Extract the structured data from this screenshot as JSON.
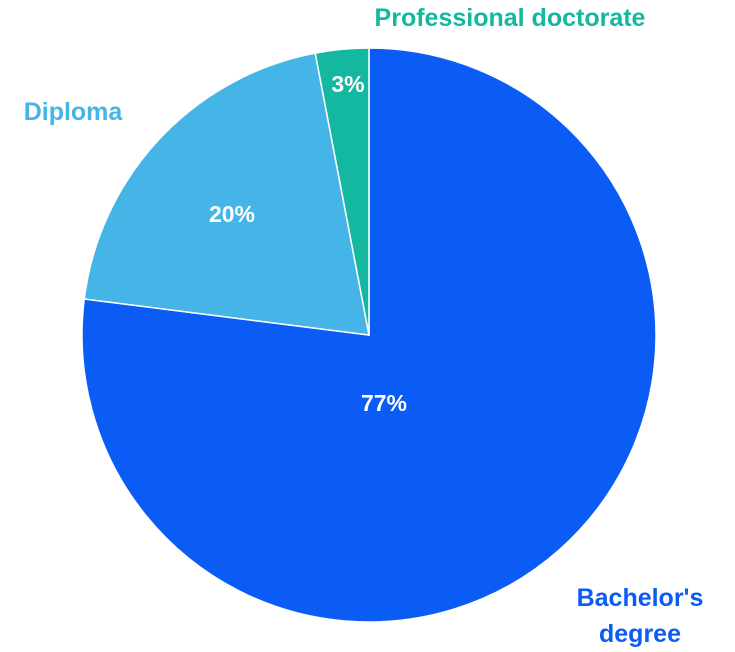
{
  "chart_data": {
    "type": "pie",
    "categories": [
      "Bachelor's degree",
      "Diploma",
      "Professional doctorate"
    ],
    "values": [
      77,
      20,
      3
    ],
    "value_labels": [
      "77%",
      "20%",
      "3%"
    ],
    "colors": [
      "#0a5cf5",
      "#45b4e6",
      "#14b8a0"
    ]
  }
}
